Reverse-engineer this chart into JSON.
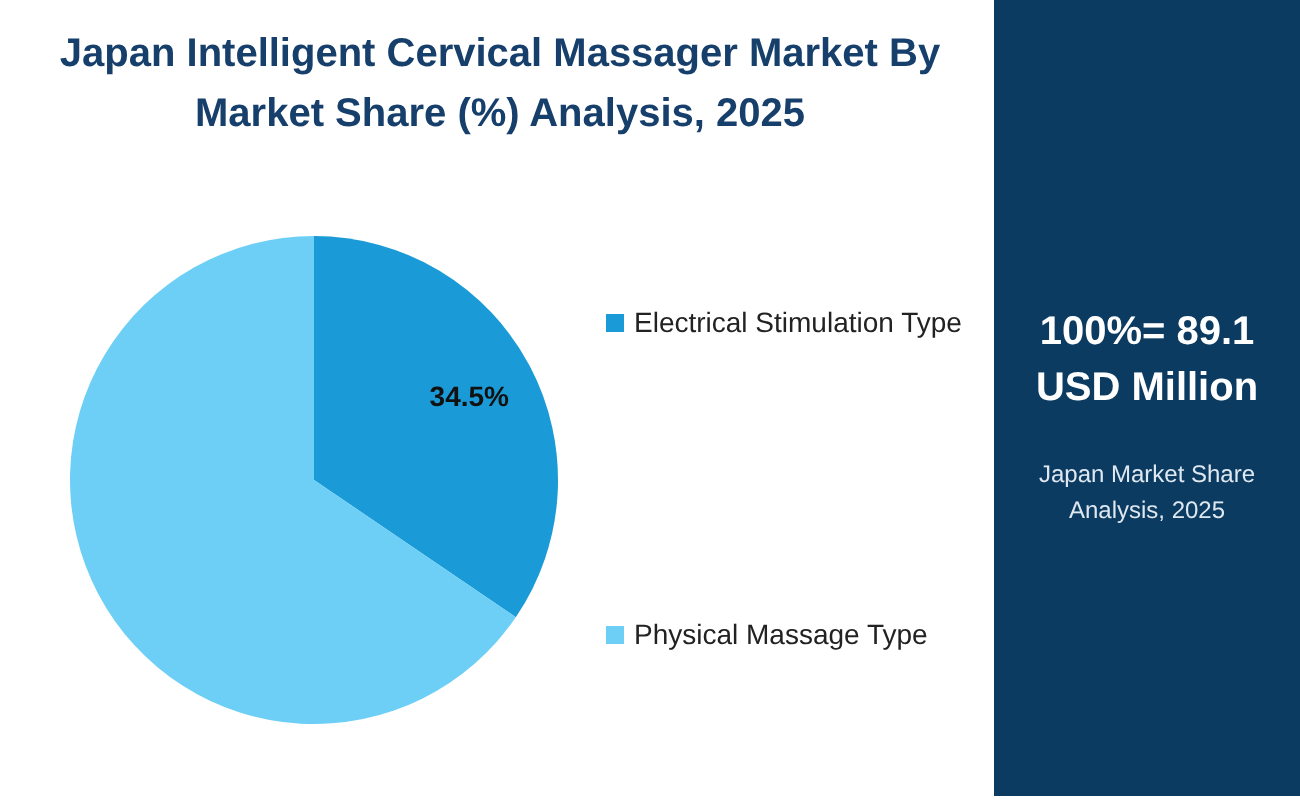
{
  "chart_data": {
    "type": "pie",
    "title": "Japan Intelligent Cervical Massager Market By Market Share (%) Analysis, 2025",
    "categories": [
      "Electrical Stimulation Type",
      "Physical Massage Type"
    ],
    "values": [
      34.5,
      65.5
    ],
    "colors": [
      "#1a9bd7",
      "#6dcff6"
    ],
    "value_labels": [
      "34.5%",
      null
    ],
    "legend": "right",
    "annotations": [
      "100%= 89.1 USD Million",
      "Japan Market Share Analysis, 2025"
    ]
  }
}
